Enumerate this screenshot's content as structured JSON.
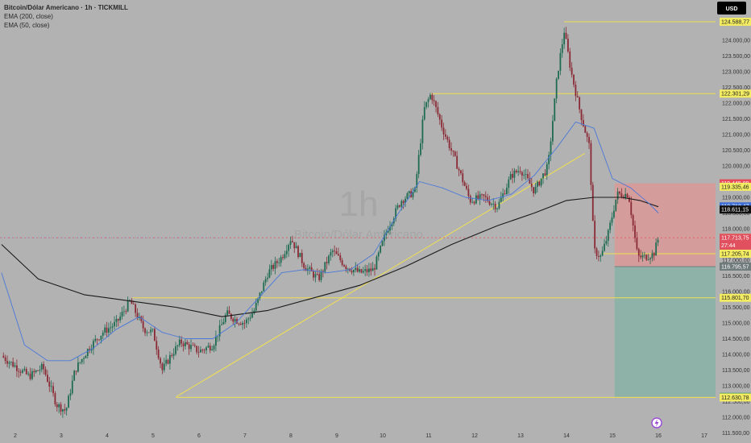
{
  "header": {
    "symbol_line": "Bitcoin/Dólar Americano · 1h · TICKMILL",
    "ema_200_label": "EMA (200, close)",
    "ema_50_label": "EMA (50, close)"
  },
  "currency_button": "USD",
  "watermark": {
    "interval": "1h",
    "name": "Bitcoin/Dólar Americano"
  },
  "colors": {
    "background": "#b2b2b2",
    "candle": "#1e6b52",
    "candle_down": "#8a2a35",
    "ema200": "#1a1a1a",
    "ema50": "#4a78d8",
    "level_line": "#f0e050",
    "risk_zone": "#d59c9c",
    "reward_zone": "#8fb2a8"
  },
  "chart_data": {
    "type": "candlestick",
    "ylim": [
      111500,
      125000
    ],
    "xlim": [
      1.7,
      17.35
    ],
    "y_ticks": [
      "124.000,00",
      "123.500,00",
      "123.000,00",
      "122.500,00",
      "122.000,00",
      "121.500,00",
      "121.000,00",
      "120.500,00",
      "120.000,00",
      "119.500,00",
      "119.000,00",
      "118.500,00",
      "118.000,00",
      "117.500,00",
      "117.000,00",
      "116.500,00",
      "116.000,00",
      "115.500,00",
      "115.000,00",
      "114.500,00",
      "114.000,00",
      "113.500,00",
      "113.000,00",
      "112.500,00",
      "112.000,00",
      "111.500,00"
    ],
    "x_ticks": [
      "2",
      "3",
      "4",
      "5",
      "6",
      "7",
      "8",
      "9",
      "10",
      "11",
      "12",
      "13",
      "14",
      "15",
      "16",
      "17"
    ],
    "price_path": [
      [
        1.7,
        113950
      ],
      [
        2.3,
        113300
      ],
      [
        2.6,
        113600
      ],
      [
        2.9,
        112400
      ],
      [
        3.1,
        112200
      ],
      [
        3.3,
        113500
      ],
      [
        3.6,
        114200
      ],
      [
        3.9,
        114700
      ],
      [
        4.2,
        115000
      ],
      [
        4.5,
        115700
      ],
      [
        4.8,
        114800
      ],
      [
        5.0,
        114700
      ],
      [
        5.2,
        113500
      ],
      [
        5.4,
        114000
      ],
      [
        5.6,
        114400
      ],
      [
        6.0,
        114100
      ],
      [
        6.3,
        114300
      ],
      [
        6.6,
        115300
      ],
      [
        6.8,
        115100
      ],
      [
        7.0,
        115000
      ],
      [
        7.2,
        115400
      ],
      [
        7.5,
        116600
      ],
      [
        7.8,
        117100
      ],
      [
        8.0,
        117700
      ],
      [
        8.3,
        116800
      ],
      [
        8.6,
        116400
      ],
      [
        8.9,
        117300
      ],
      [
        9.2,
        116800
      ],
      [
        9.5,
        116600
      ],
      [
        9.8,
        116700
      ],
      [
        10.1,
        118000
      ],
      [
        10.4,
        118900
      ],
      [
        10.7,
        119200
      ],
      [
        10.9,
        121800
      ],
      [
        11.05,
        122300
      ],
      [
        11.3,
        121200
      ],
      [
        11.6,
        120100
      ],
      [
        11.9,
        118900
      ],
      [
        12.2,
        119000
      ],
      [
        12.5,
        118700
      ],
      [
        12.8,
        119700
      ],
      [
        13.0,
        119900
      ],
      [
        13.3,
        119200
      ],
      [
        13.6,
        120000
      ],
      [
        13.8,
        122900
      ],
      [
        13.95,
        124300
      ],
      [
        14.1,
        123000
      ],
      [
        14.3,
        121700
      ],
      [
        14.5,
        120600
      ],
      [
        14.6,
        117300
      ],
      [
        14.75,
        117100
      ],
      [
        14.9,
        117800
      ],
      [
        15.1,
        119100
      ],
      [
        15.35,
        119100
      ],
      [
        15.55,
        117100
      ],
      [
        15.7,
        117100
      ],
      [
        15.9,
        117200
      ],
      [
        16.0,
        117700
      ]
    ],
    "ema200_path": [
      [
        1.7,
        117500
      ],
      [
        2.5,
        116400
      ],
      [
        3.5,
        115900
      ],
      [
        4.5,
        115700
      ],
      [
        5.5,
        115500
      ],
      [
        6.5,
        115200
      ],
      [
        7.5,
        115400
      ],
      [
        8.5,
        115800
      ],
      [
        9.5,
        116200
      ],
      [
        10.5,
        116800
      ],
      [
        11.5,
        117500
      ],
      [
        12.5,
        118100
      ],
      [
        13.3,
        118500
      ],
      [
        14.0,
        118900
      ],
      [
        14.6,
        119000
      ],
      [
        15.2,
        119000
      ],
      [
        15.6,
        118900
      ],
      [
        16.0,
        118700
      ]
    ],
    "ema50_path": [
      [
        1.7,
        116600
      ],
      [
        2.2,
        114300
      ],
      [
        2.7,
        113800
      ],
      [
        3.2,
        113800
      ],
      [
        3.7,
        114200
      ],
      [
        4.2,
        114800
      ],
      [
        4.7,
        115200
      ],
      [
        5.2,
        114700
      ],
      [
        5.7,
        114500
      ],
      [
        6.3,
        114500
      ],
      [
        6.8,
        115000
      ],
      [
        7.3,
        115800
      ],
      [
        7.8,
        116600
      ],
      [
        8.3,
        116700
      ],
      [
        8.8,
        116600
      ],
      [
        9.3,
        116700
      ],
      [
        9.8,
        117200
      ],
      [
        10.3,
        118400
      ],
      [
        10.8,
        119500
      ],
      [
        11.3,
        119300
      ],
      [
        11.8,
        119000
      ],
      [
        12.3,
        118900
      ],
      [
        12.8,
        119100
      ],
      [
        13.3,
        119700
      ],
      [
        13.8,
        120600
      ],
      [
        14.2,
        121400
      ],
      [
        14.6,
        121200
      ],
      [
        15.0,
        119600
      ],
      [
        15.4,
        119300
      ],
      [
        15.8,
        118800
      ],
      [
        16.0,
        118500
      ]
    ],
    "trendline": [
      [
        5.5,
        112650
      ],
      [
        14.4,
        120400
      ]
    ],
    "horizontal_levels": [
      {
        "y": 124588.77,
        "x_start": 13.95
      },
      {
        "y": 122301.29,
        "x_start": 11.05
      },
      {
        "y": 115801.7,
        "x_start": 4.55
      },
      {
        "y": 112630.78,
        "x_start": 5.5
      },
      {
        "y": 117205.74,
        "x_start": 14.8
      }
    ],
    "dotted_line_y": 117713.75,
    "position": {
      "entry": 116795.57,
      "stop": 119445.89,
      "target": 112646.56,
      "x_start": 15.05,
      "x_end": 17.35
    },
    "price_tags": [
      {
        "value": 124588.77,
        "label": "124.588,77",
        "style": "level"
      },
      {
        "value": 122301.29,
        "label": "122.301,29",
        "style": "level"
      },
      {
        "value": 119445.89,
        "label": "119.445,89",
        "style": "stop"
      },
      {
        "value": 119335.46,
        "label": "119.335,46",
        "style": "level"
      },
      {
        "value": 118712.47,
        "label": "118.712,47",
        "style": "ema50"
      },
      {
        "value": 118611.15,
        "label": "118.611,15",
        "style": "ema200"
      },
      {
        "value": 117714.68,
        "label": "117.714,68",
        "style": "level"
      },
      {
        "value": 117713.75,
        "label": "117.713,75",
        "style": "current"
      },
      {
        "value": 117205.74,
        "label": "117.205,74",
        "style": "level"
      },
      {
        "value": 116795.57,
        "label": "116.795,57",
        "style": "entry"
      },
      {
        "value": 115801.7,
        "label": "115.801,70",
        "style": "level"
      },
      {
        "value": 112646.56,
        "label": "112.646,56",
        "style": "target"
      },
      {
        "value": 112630.78,
        "label": "112.630,78",
        "style": "level"
      }
    ],
    "countdown": "27:44"
  }
}
